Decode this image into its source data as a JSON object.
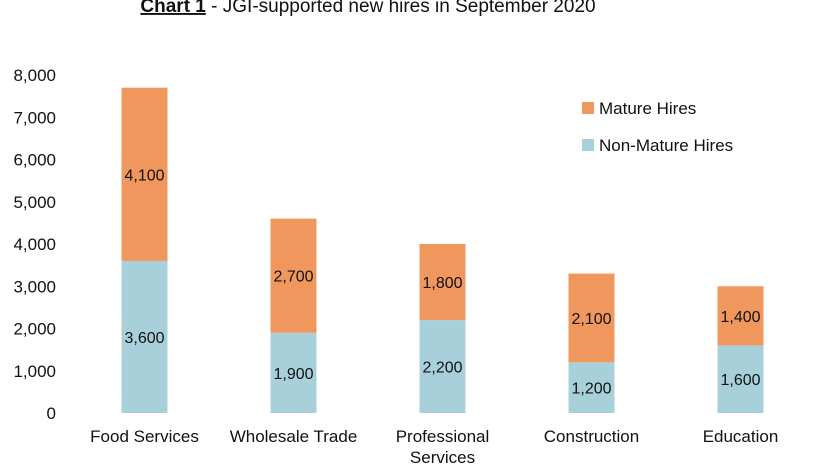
{
  "chart_data": {
    "type": "bar",
    "stacked": true,
    "title_bold": "Chart 1",
    "title_rest": " - JGI-supported new hires in September 2020",
    "categories": [
      [
        "Food Services"
      ],
      [
        "Wholesale Trade"
      ],
      [
        "Professional",
        "Services"
      ],
      [
        "Construction"
      ],
      [
        "Education"
      ]
    ],
    "series": [
      {
        "name": "Non-Mature Hires",
        "color": "#a8d0da",
        "values": [
          3600,
          1900,
          2200,
          1200,
          1600
        ],
        "labels": [
          "3,600",
          "1,900",
          "2,200",
          "1,200",
          "1,600"
        ]
      },
      {
        "name": "Mature Hires",
        "color": "#f0975e",
        "values": [
          4100,
          2700,
          1800,
          2100,
          1400
        ],
        "labels": [
          "4,100",
          "2,700",
          "1,800",
          "2,100",
          "1,400"
        ]
      }
    ],
    "ylim": [
      0,
      8000
    ],
    "yticks": [
      0,
      1000,
      2000,
      3000,
      4000,
      5000,
      6000,
      7000,
      8000
    ],
    "ytick_labels": [
      "0",
      "1,000",
      "2,000",
      "3,000",
      "4,000",
      "5,000",
      "6,000",
      "7,000",
      "8,000"
    ],
    "legend": {
      "placement": "top-right",
      "order": [
        "Mature Hires",
        "Non-Mature Hires"
      ]
    },
    "grid": false
  }
}
